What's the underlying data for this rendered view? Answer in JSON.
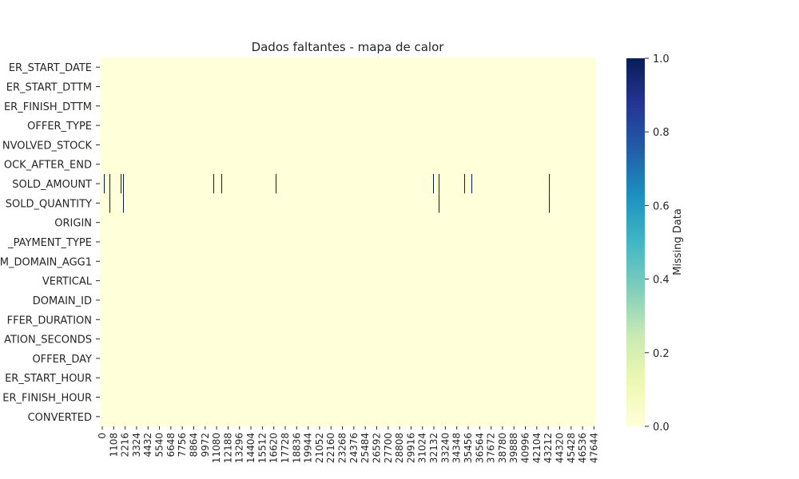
{
  "chart_data": {
    "type": "heatmap",
    "title": "Dados faltantes - mapa de calor",
    "rows": [
      "ER_START_DATE",
      "ER_START_DTTM",
      "ER_FINISH_DTTM",
      "OFFER_TYPE",
      "NVOLVED_STOCK",
      "OCK_AFTER_END",
      "SOLD_AMOUNT",
      "SOLD_QUANTITY",
      "ORIGIN",
      "_PAYMENT_TYPE",
      "M_DOMAIN_AGG1",
      "VERTICAL",
      "DOMAIN_ID",
      "FFER_DURATION",
      "ATION_SECONDS",
      "OFFER_DAY",
      "ER_START_HOUR",
      "ER_FINISH_HOUR",
      "CONVERTED"
    ],
    "x_tick_labels": [
      "0",
      "1108",
      "2216",
      "3324",
      "4432",
      "5540",
      "6648",
      "7756",
      "8864",
      "9972",
      "11080",
      "12188",
      "13296",
      "14404",
      "15512",
      "16620",
      "17728",
      "18836",
      "19944",
      "21052",
      "22160",
      "23268",
      "24376",
      "25484",
      "26592",
      "27700",
      "28808",
      "29916",
      "31024",
      "32132",
      "33240",
      "34348",
      "35456",
      "36564",
      "37672",
      "38780",
      "39888",
      "40996",
      "42104",
      "43212",
      "44320",
      "45428",
      "46536",
      "47644"
    ],
    "x_tick_step": 1108,
    "x_range": [
      0,
      48000
    ],
    "missing": [
      {
        "row": "SOLD_AMOUNT",
        "indices": [
          400,
          900,
          2000,
          2250,
          11000,
          11800,
          17000,
          32300,
          32800,
          35300,
          36000,
          43500
        ]
      },
      {
        "row": "SOLD_QUANTITY",
        "indices": [
          900,
          2250,
          32800,
          43500
        ]
      }
    ],
    "colorbar": {
      "label": "Missing Data",
      "range": [
        0,
        1
      ],
      "ticks": [
        "0.0",
        "0.2",
        "0.4",
        "0.6",
        "0.8",
        "1.0"
      ],
      "colormap": "YlGnBu",
      "low_color": "#ffffd9",
      "high_color": "#081d58"
    }
  }
}
